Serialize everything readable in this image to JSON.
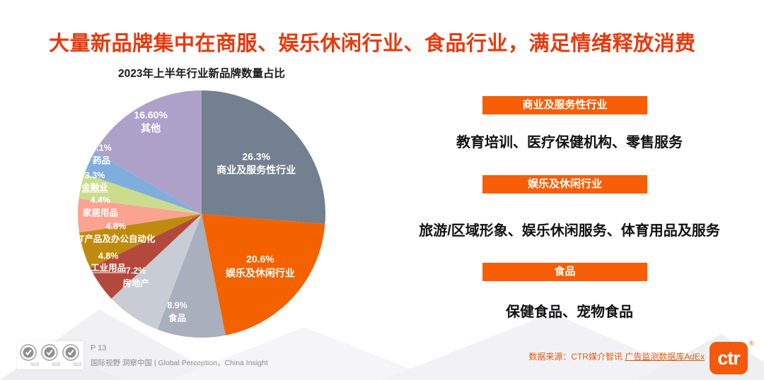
{
  "title": "大量新品牌集中在商服、娱乐休闲行业、食品行业，满足情绪释放消费",
  "chart_data": {
    "type": "pie",
    "title": "2023年上半年行业新品牌数量占比",
    "start_angle_deg": 0,
    "direction": "clockwise",
    "slices": [
      {
        "label": "商业及服务性行业",
        "value": 26.3,
        "display": "26.3%",
        "color": "#73808F",
        "underlined": false
      },
      {
        "label": "娱乐及休闲行业",
        "value": 20.6,
        "display": "20.6%",
        "color": "#F46200",
        "underlined": false
      },
      {
        "label": "食品",
        "value": 8.9,
        "display": "8.9%",
        "color": "#A9AFBC",
        "underlined": false
      },
      {
        "label": "房地产",
        "value": 7.2,
        "display": "7.2%",
        "color": "#C8CCD4",
        "underlined": false
      },
      {
        "label": "工业用品",
        "value": 4.8,
        "display": "4.8%",
        "color": "#B3493C",
        "underlined": true
      },
      {
        "label": "IT产品及办公自动化",
        "value": 4.8,
        "display": "4.8%",
        "color": "#BF8B0E",
        "underlined": false
      },
      {
        "label": "家居用品",
        "value": 4.4,
        "display": "4.4%",
        "color": "#FBA291",
        "underlined": false
      },
      {
        "label": "金融业",
        "value": 3.3,
        "display": "3.3%",
        "color": "#CBDC8F",
        "underlined": true
      },
      {
        "label": "药品",
        "value": 3.1,
        "display": "3.1%",
        "color": "#7FAEDC",
        "underlined": false
      },
      {
        "label": "其他",
        "value": 16.6,
        "display": "16.60%",
        "color": "#AEA1C9",
        "underlined": false
      }
    ]
  },
  "sections": [
    {
      "banner": "商业及服务性行业",
      "description": "教育培训、医疗保健机构、零售服务"
    },
    {
      "banner": "娱乐及休闲行业",
      "description": "旅游/区域形象、娱乐休闲服务、体育用品及服务"
    },
    {
      "banner": "食品",
      "description": "保健食品、宠物食品"
    }
  ],
  "footer": {
    "page": "P 13",
    "tagline": "国际视野 洞察中国 | Global Perception，China Insight",
    "source_prefix": "数据来源：CTR媒介智讯 ",
    "source_link": "广告监测数据库AdEx",
    "logo_text": "ctr",
    "logo_reg": "®",
    "sgs_label": "SGS"
  },
  "colors": {
    "title": "#E8390D",
    "banner": "#F75E07",
    "logo": "#F2590D",
    "source_text": "#DE5A12"
  }
}
